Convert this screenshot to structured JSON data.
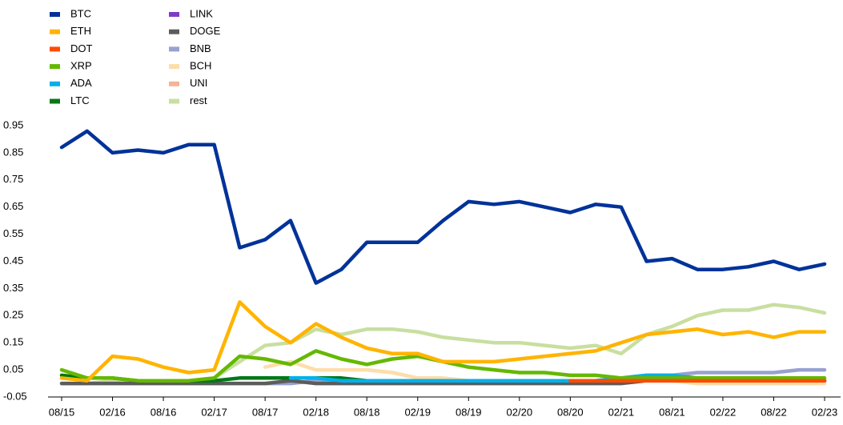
{
  "chart_data": {
    "type": "line",
    "categories": [
      "08/15",
      null,
      "02/16",
      null,
      "08/16",
      null,
      "02/17",
      null,
      "08/17",
      null,
      "02/18",
      null,
      "08/18",
      null,
      "02/19",
      null,
      "08/19",
      null,
      "02/20",
      null,
      "08/20",
      null,
      "02/21",
      null,
      "08/21",
      null,
      "02/22",
      null,
      "08/22",
      null,
      "02/23"
    ],
    "ylim": [
      -0.05,
      0.95
    ],
    "yticks": [
      -0.05,
      0.05,
      0.15,
      0.25,
      0.35,
      0.45,
      0.55,
      0.65,
      0.75,
      0.85,
      0.95
    ],
    "grid": false,
    "legend": "top-left",
    "series": [
      {
        "name": "BTC",
        "color": "#003299",
        "values": [
          0.87,
          0.93,
          0.85,
          0.86,
          0.85,
          0.88,
          0.88,
          0.5,
          0.53,
          0.6,
          0.37,
          0.42,
          0.52,
          0.52,
          0.52,
          0.6,
          0.67,
          0.66,
          0.67,
          0.65,
          0.63,
          0.66,
          0.65,
          0.45,
          0.46,
          0.42,
          0.42,
          0.43,
          0.45,
          0.42,
          0.44
        ]
      },
      {
        "name": "ETH",
        "color": "#ffb400",
        "values": [
          0.02,
          0.01,
          0.1,
          0.09,
          0.06,
          0.04,
          0.05,
          0.3,
          0.21,
          0.15,
          0.22,
          0.17,
          0.13,
          0.11,
          0.11,
          0.08,
          0.08,
          0.08,
          0.09,
          0.1,
          0.11,
          0.12,
          0.15,
          0.18,
          0.19,
          0.2,
          0.18,
          0.19,
          0.17,
          0.19,
          0.19
        ]
      },
      {
        "name": "DOT",
        "color": "#ff4b00",
        "values": [
          null,
          null,
          null,
          null,
          null,
          null,
          null,
          null,
          null,
          null,
          null,
          null,
          null,
          null,
          null,
          null,
          null,
          null,
          null,
          null,
          0.01,
          0.01,
          0.01,
          0.01,
          0.01,
          0.01,
          0.01,
          0.01,
          0.01,
          0.01,
          0.01
        ]
      },
      {
        "name": "XRP",
        "color": "#65b800",
        "values": [
          0.05,
          0.02,
          0.02,
          0.01,
          0.01,
          0.01,
          0.02,
          0.1,
          0.09,
          0.07,
          0.12,
          0.09,
          0.07,
          0.09,
          0.1,
          0.08,
          0.06,
          0.05,
          0.04,
          0.04,
          0.03,
          0.03,
          0.02,
          0.02,
          0.02,
          0.02,
          0.02,
          0.02,
          0.02,
          0.02,
          0.02
        ]
      },
      {
        "name": "ADA",
        "color": "#00b1ea",
        "values": [
          null,
          null,
          null,
          null,
          null,
          null,
          null,
          null,
          null,
          0.02,
          0.02,
          0.01,
          0.01,
          0.01,
          0.01,
          0.01,
          0.01,
          0.01,
          0.01,
          0.01,
          0.01,
          0.01,
          0.02,
          0.03,
          0.03,
          0.02,
          0.02,
          0.01,
          0.01,
          0.01,
          0.01
        ]
      },
      {
        "name": "LTC",
        "color": "#007816",
        "values": [
          0.03,
          0.02,
          0.02,
          0.01,
          0.01,
          0.01,
          0.01,
          0.02,
          0.02,
          0.02,
          0.02,
          0.02,
          0.01,
          0.01,
          0.01,
          0.01,
          0.01,
          0.01,
          0.01,
          0.01,
          0.01,
          0.01,
          0.01,
          0.01,
          0.01,
          0.01,
          0.01,
          0.01,
          0.01,
          0.01,
          0.01
        ]
      },
      {
        "name": "LINK",
        "color": "#8139c6",
        "values": [
          null,
          null,
          null,
          null,
          null,
          null,
          null,
          null,
          null,
          null,
          null,
          null,
          null,
          null,
          null,
          null,
          0.01,
          0.01,
          0.01,
          0.01,
          0.01,
          0.01,
          0.01,
          0.01,
          0.01,
          0.01,
          0.01,
          0.01,
          0.01,
          0.01,
          0.01
        ]
      },
      {
        "name": "DOGE",
        "color": "#5c5c5c",
        "values": [
          0.0,
          0.0,
          0.0,
          0.0,
          0.0,
          0.0,
          0.0,
          0.0,
          0.0,
          0.01,
          0.0,
          0.0,
          0.0,
          0.0,
          0.0,
          0.0,
          0.0,
          0.0,
          0.0,
          0.0,
          0.0,
          0.0,
          0.0,
          0.01,
          0.01,
          0.01,
          0.01,
          0.01,
          0.01,
          0.01,
          0.01
        ]
      },
      {
        "name": "BNB",
        "color": "#98a1d0",
        "values": [
          null,
          null,
          null,
          null,
          null,
          null,
          null,
          null,
          0.0,
          0.0,
          0.01,
          0.01,
          0.01,
          0.01,
          0.01,
          0.01,
          0.01,
          0.01,
          0.01,
          0.01,
          0.01,
          0.01,
          0.02,
          0.03,
          0.03,
          0.04,
          0.04,
          0.04,
          0.04,
          0.05,
          0.05
        ]
      },
      {
        "name": "BCH",
        "color": "#fdddaa",
        "values": [
          null,
          null,
          null,
          null,
          null,
          null,
          null,
          null,
          0.06,
          0.08,
          0.05,
          0.05,
          0.05,
          0.04,
          0.02,
          0.02,
          0.01,
          0.01,
          0.01,
          0.01,
          0.01,
          0.01,
          0.01,
          0.01,
          0.01,
          0.0,
          0.0,
          0.0,
          0.0,
          0.0,
          0.0
        ]
      },
      {
        "name": "UNI",
        "color": "#f6b297",
        "values": [
          null,
          null,
          null,
          null,
          null,
          null,
          null,
          null,
          null,
          null,
          null,
          null,
          null,
          null,
          null,
          null,
          null,
          null,
          null,
          null,
          0.0,
          0.01,
          0.01,
          0.01,
          0.01,
          0.01,
          0.01,
          0.01,
          0.01,
          0.01,
          0.01
        ]
      },
      {
        "name": "rest",
        "color": "#c8dfa0",
        "values": [
          0.0,
          0.0,
          0.01,
          0.01,
          0.01,
          0.01,
          0.02,
          0.08,
          0.14,
          0.15,
          0.2,
          0.18,
          0.2,
          0.2,
          0.19,
          0.17,
          0.16,
          0.15,
          0.15,
          0.14,
          0.13,
          0.14,
          0.11,
          0.18,
          0.21,
          0.25,
          0.27,
          0.27,
          0.29,
          0.28,
          0.26
        ]
      }
    ]
  }
}
